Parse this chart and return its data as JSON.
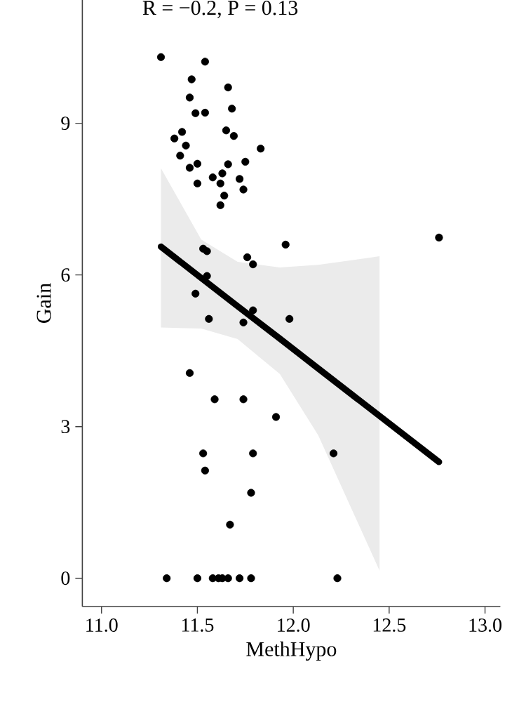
{
  "chart_data": {
    "type": "scatter",
    "title": "R = −0.2, P = 0.13",
    "xlabel": "MethHypo",
    "ylabel": "Gain",
    "xlim": [
      10.9,
      13.08
    ],
    "ylim": [
      -0.56,
      11.44
    ],
    "xticks": [
      {
        "value": 11.0,
        "label": "11.0"
      },
      {
        "value": 11.5,
        "label": "11.5"
      },
      {
        "value": 12.0,
        "label": "12.0"
      },
      {
        "value": 12.5,
        "label": "12.5"
      },
      {
        "value": 13.0,
        "label": "13.0"
      }
    ],
    "yticks": [
      0,
      3,
      6,
      9
    ],
    "series": [
      {
        "type": "scatter",
        "marker": "circle",
        "color": "#000000",
        "x": [
          11.31,
          11.54,
          11.47,
          11.66,
          11.46,
          11.49,
          11.54,
          11.68,
          11.42,
          11.38,
          11.44,
          11.65,
          11.69,
          11.83,
          11.41,
          11.46,
          11.5,
          11.66,
          11.75,
          11.58,
          11.63,
          11.62,
          11.5,
          11.72,
          11.74,
          11.64,
          11.62,
          11.96,
          11.76,
          11.79,
          11.53,
          11.55,
          11.55,
          11.49,
          11.56,
          11.74,
          11.79,
          11.98,
          11.46,
          11.59,
          11.74,
          11.91,
          11.53,
          11.79,
          12.21,
          11.54,
          11.78,
          11.67,
          11.34,
          11.5,
          11.58,
          11.61,
          11.63,
          11.66,
          11.72,
          11.78,
          12.23,
          12.76
        ],
        "values": [
          10.31,
          10.22,
          9.87,
          9.71,
          9.51,
          9.2,
          9.21,
          9.29,
          8.83,
          8.7,
          8.56,
          8.86,
          8.75,
          8.5,
          8.36,
          8.12,
          8.2,
          8.19,
          8.24,
          7.93,
          8.01,
          7.81,
          7.81,
          7.9,
          7.69,
          7.57,
          7.38,
          6.6,
          6.35,
          6.21,
          6.52,
          6.47,
          5.98,
          5.63,
          5.13,
          5.06,
          5.3,
          5.13,
          4.06,
          3.54,
          3.54,
          3.19,
          2.47,
          2.47,
          2.47,
          2.13,
          1.69,
          1.06,
          0,
          0,
          0,
          0,
          0,
          0,
          0,
          0,
          0,
          6.74
        ]
      },
      {
        "type": "line",
        "marker": "none",
        "color": "#000000",
        "x": [
          11.31,
          11.52,
          11.71,
          11.93,
          12.13,
          12.45,
          12.76
        ],
        "values": [
          6.56,
          5.94,
          5.38,
          4.74,
          4.15,
          3.21,
          2.3
        ],
        "lower": [
          4.96,
          4.94,
          4.73,
          4.04,
          2.83,
          0.15,
          null
        ],
        "upper": [
          8.11,
          6.7,
          6.26,
          6.15,
          6.2,
          6.37,
          null
        ]
      }
    ]
  }
}
